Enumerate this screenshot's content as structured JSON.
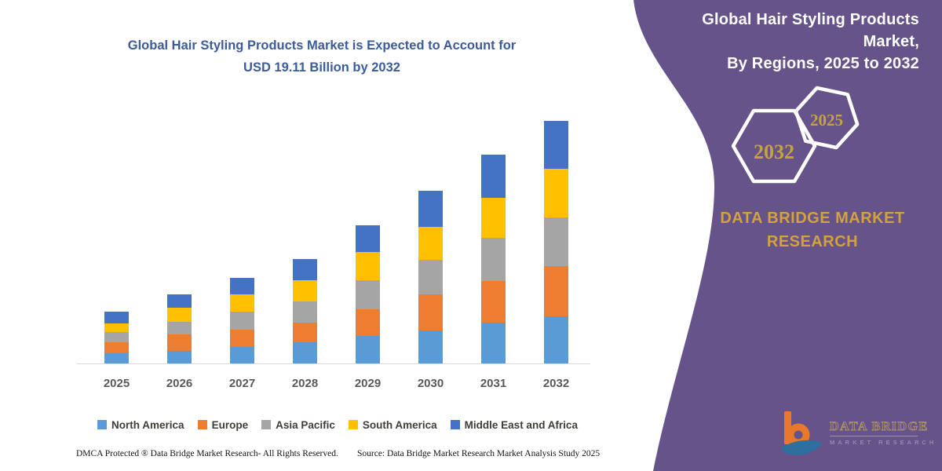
{
  "headline": {
    "line1": "Global Hair Styling Products Market is Expected to Account for",
    "line2": "USD 19.11 Billion by 2032",
    "color": "#3C5C99"
  },
  "chart_data": {
    "type": "bar",
    "stacked": true,
    "title": "Global Hair Styling Products Market is Expected to Account for USD 19.11 Billion by 2032",
    "unit": "USD Billion",
    "categories": [
      "2025",
      "2026",
      "2027",
      "2028",
      "2029",
      "2030",
      "2031",
      "2032"
    ],
    "series": [
      {
        "name": "North America",
        "color": "#5B9BD5",
        "values": [
          0.82,
          1.02,
          1.33,
          1.64,
          2.15,
          2.6,
          3.22,
          3.69
        ]
      },
      {
        "name": "Europe",
        "color": "#ED7D31",
        "values": [
          0.86,
          1.29,
          1.33,
          1.58,
          2.15,
          2.83,
          3.3,
          4.0
        ]
      },
      {
        "name": "Asia Pacific",
        "color": "#A5A5A5",
        "values": [
          0.78,
          0.96,
          1.43,
          1.66,
          2.25,
          2.76,
          3.36,
          3.83
        ]
      },
      {
        "name": "South America",
        "color": "#FFC000",
        "values": [
          0.72,
          1.13,
          1.33,
          1.68,
          2.25,
          2.6,
          3.14,
          3.79
        ]
      },
      {
        "name": "Middle East and Africa",
        "color": "#4472C4",
        "values": [
          0.92,
          1.02,
          1.33,
          1.64,
          2.09,
          2.83,
          3.42,
          3.81
        ]
      }
    ],
    "totals": [
      4.1,
      5.42,
      6.75,
      8.2,
      10.89,
      13.62,
      16.44,
      19.11
    ],
    "ylim": [
      0,
      19.5
    ],
    "grid": false,
    "legend_position": "bottom",
    "xlabel": "",
    "ylabel": ""
  },
  "footer": {
    "copyright": "DMCA Protected ® Data Bridge Market Research-  All Rights Reserved.",
    "source": "Source: Data Bridge Market Research  Market Analysis Study 2025"
  },
  "panel": {
    "bg_color": "#655389",
    "header_line1": "Global Hair Styling Products Market,",
    "header_line2": "By Regions, 2025 to 2032",
    "hexagons": [
      {
        "label": "2032"
      },
      {
        "label": "2025"
      }
    ],
    "brand_line1": "DATA BRIDGE MARKET",
    "brand_line2": "RESEARCH",
    "accent_color": "#D2A33C",
    "logo": {
      "wordmark": "DATA BRIDGE",
      "subtext": "MARKET RESEARCH"
    }
  }
}
